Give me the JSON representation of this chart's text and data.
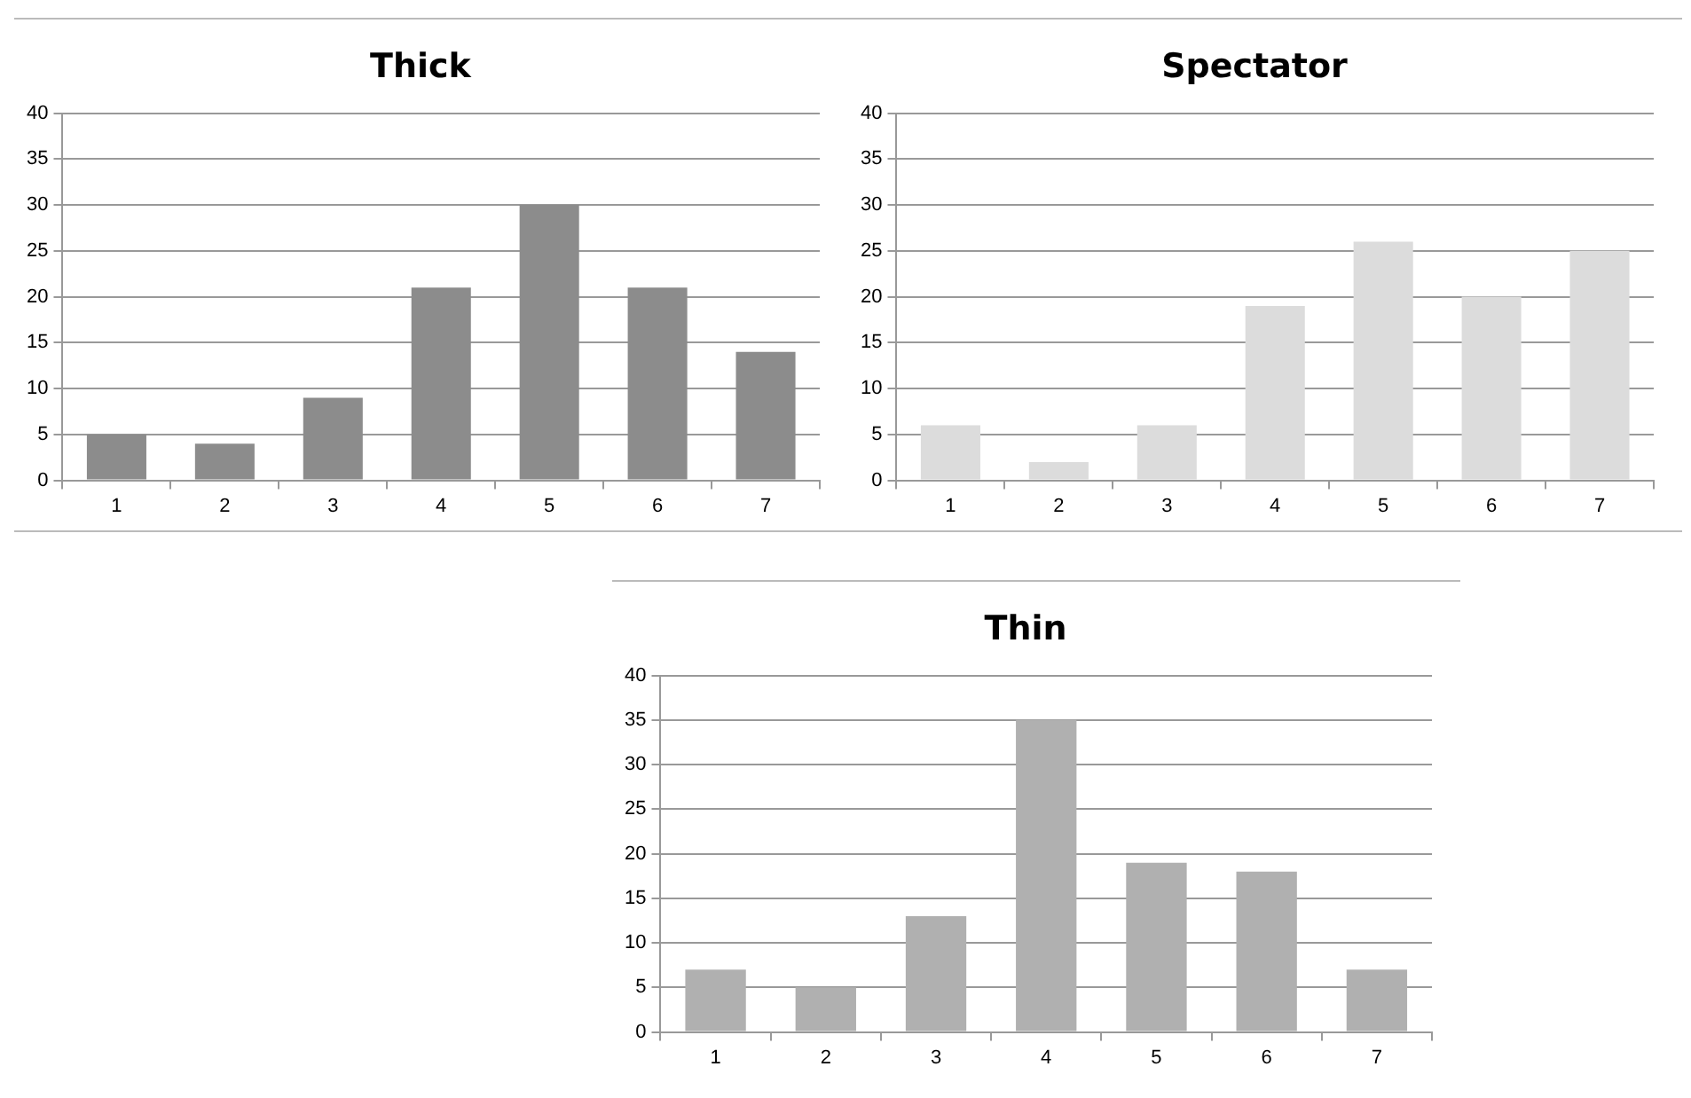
{
  "chart_data": [
    {
      "type": "bar",
      "title": "Thick",
      "categories": [
        "1",
        "2",
        "3",
        "4",
        "5",
        "6",
        "7"
      ],
      "values": [
        5,
        4,
        9,
        21,
        30,
        21,
        14
      ],
      "color": "#8c8c8c",
      "ylim": [
        0,
        40
      ],
      "yticks": [
        0,
        5,
        10,
        15,
        20,
        25,
        30,
        35,
        40
      ],
      "grid": "y",
      "legend": false
    },
    {
      "type": "bar",
      "title": "Spectator",
      "categories": [
        "1",
        "2",
        "3",
        "4",
        "5",
        "6",
        "7"
      ],
      "values": [
        6,
        2,
        6,
        19,
        26,
        20,
        25
      ],
      "color": "#dcdcdc",
      "ylim": [
        0,
        40
      ],
      "yticks": [
        0,
        5,
        10,
        15,
        20,
        25,
        30,
        35,
        40
      ],
      "grid": "y",
      "legend": false
    },
    {
      "type": "bar",
      "title": "Thin",
      "categories": [
        "1",
        "2",
        "3",
        "4",
        "5",
        "6",
        "7"
      ],
      "values": [
        7,
        5,
        13,
        35,
        19,
        18,
        7
      ],
      "color": "#b0b0b0",
      "ylim": [
        0,
        40
      ],
      "yticks": [
        0,
        5,
        10,
        15,
        20,
        25,
        30,
        35,
        40
      ],
      "grid": "y",
      "legend": false
    }
  ]
}
